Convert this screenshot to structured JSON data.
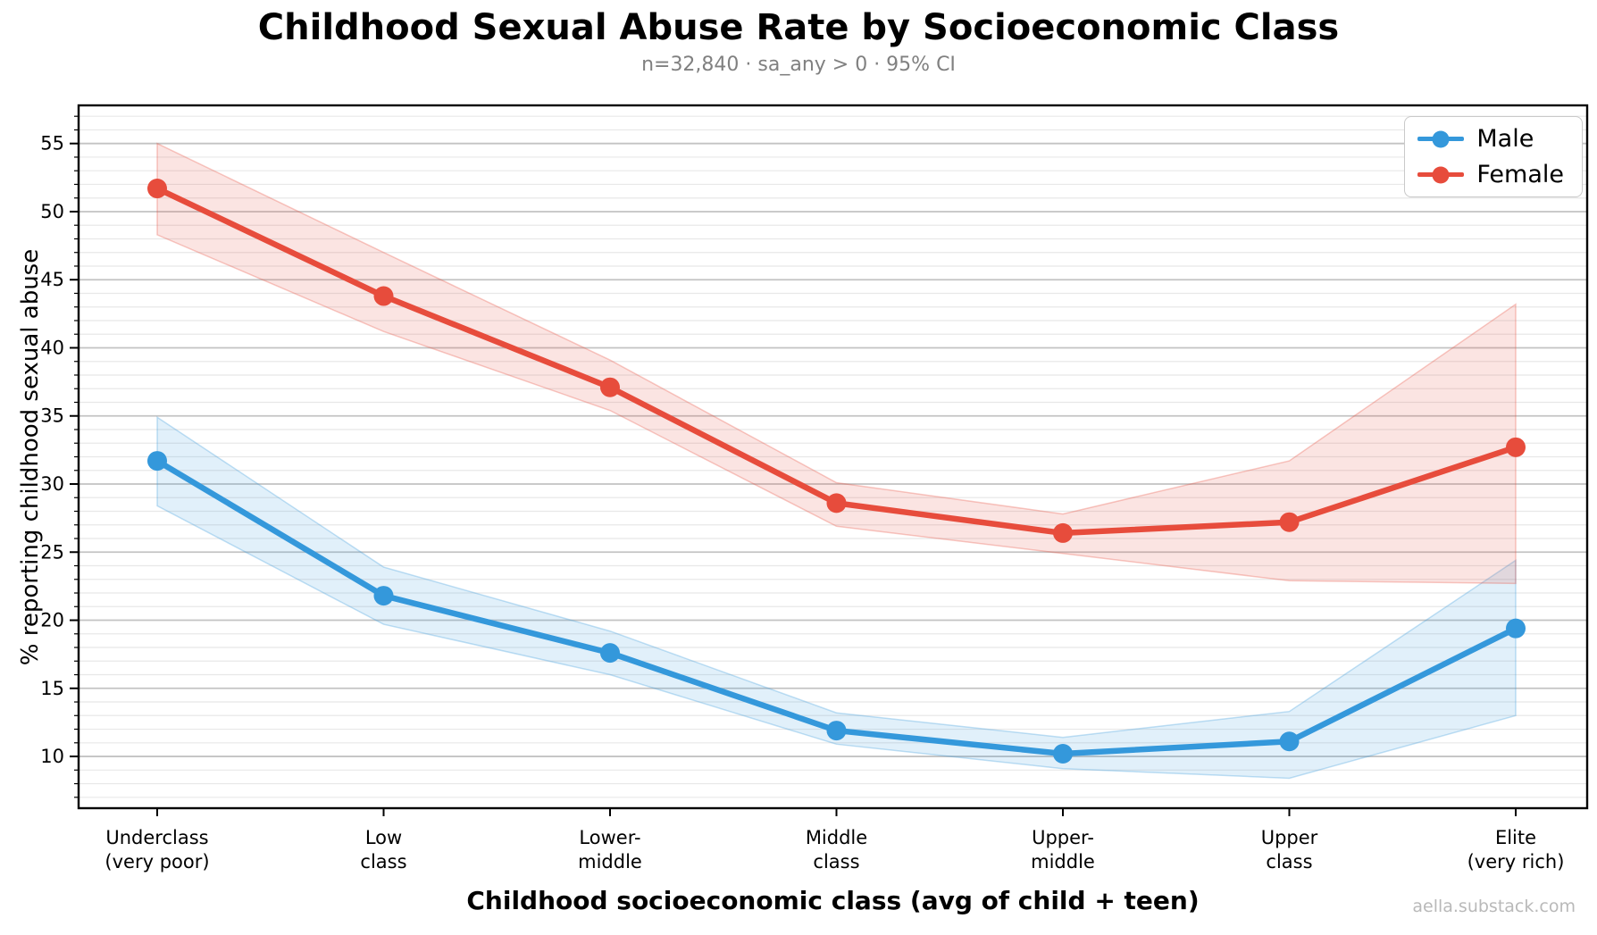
{
  "page": {
    "title": "Childhood Sexual Abuse Rate by Socioeconomic Class",
    "subtitle": "n=32,840 · sa_any > 0 · 95% CI",
    "footer": "aella.substack.com"
  },
  "chart_data": {
    "type": "line",
    "title": "Childhood Sexual Abuse Rate by Socioeconomic Class",
    "subtitle": "n=32,840 · sa_any > 0 · 95% CI",
    "xlabel": "Childhood socioeconomic class (avg of child + teen)",
    "ylabel": "% reporting childhood sexual abuse",
    "categories": [
      "Underclass (very poor)",
      "Low class",
      "Lower-middle",
      "Middle class",
      "Upper-middle",
      "Upper class",
      "Elite (very rich)"
    ],
    "category_label_lines": [
      [
        "Underclass",
        "(very poor)"
      ],
      [
        "Low",
        "class"
      ],
      [
        "Lower-",
        "middle"
      ],
      [
        "Middle",
        "class"
      ],
      [
        "Upper-",
        "middle"
      ],
      [
        "Upper",
        "class"
      ],
      [
        "Elite",
        "(very rich)"
      ]
    ],
    "ylim": [
      6.2,
      57.8
    ],
    "yticks_major": [
      10,
      15,
      20,
      25,
      30,
      35,
      40,
      45,
      50,
      55
    ],
    "minor_grid_step": 1,
    "grid": true,
    "legend_position": "top-right",
    "ci_level": "95%",
    "series": [
      {
        "name": "Male",
        "color": "#3498db",
        "values": [
          31.7,
          21.8,
          17.6,
          11.9,
          10.2,
          11.1,
          19.4
        ],
        "ci_low": [
          28.4,
          19.7,
          16.0,
          10.9,
          9.1,
          8.4,
          13.0
        ],
        "ci_high": [
          34.9,
          23.9,
          19.2,
          13.2,
          11.4,
          13.3,
          24.4
        ]
      },
      {
        "name": "Female",
        "color": "#e74c3c",
        "values": [
          51.7,
          43.8,
          37.1,
          28.6,
          26.4,
          27.2,
          32.7
        ],
        "ci_low": [
          48.3,
          41.2,
          35.4,
          26.9,
          24.9,
          22.9,
          22.7
        ],
        "ci_high": [
          55.0,
          47.0,
          39.1,
          30.1,
          27.8,
          31.7,
          43.2
        ]
      }
    ]
  }
}
